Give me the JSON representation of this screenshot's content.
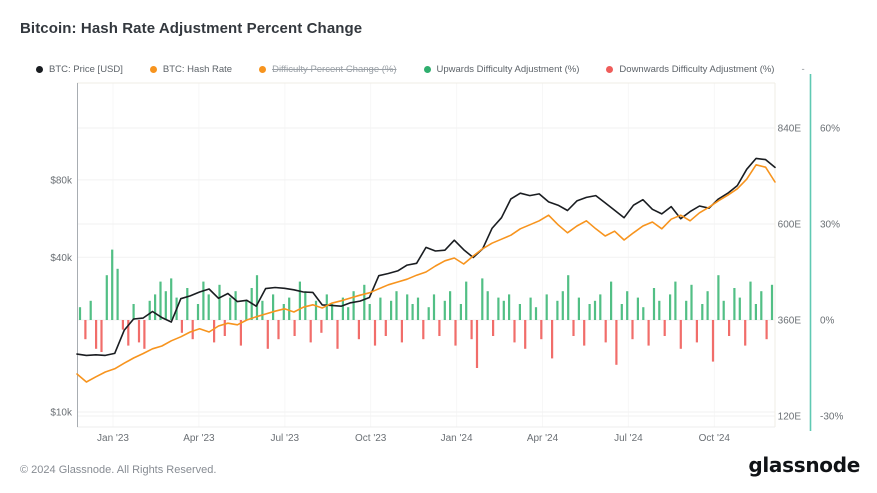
{
  "title": "Bitcoin: Hash Rate Adjustment Percent Change",
  "legend": [
    {
      "label": "BTC: Price [USD]",
      "color": "#1a1d21",
      "disabled": false
    },
    {
      "label": "BTC: Hash Rate",
      "color": "#f7941e",
      "disabled": false
    },
    {
      "label": "Difficulty Percent Change (%)",
      "color": "#f7941e",
      "disabled": true
    },
    {
      "label": "Upwards Difficulty Adjustment (%)",
      "color": "#2fae6e",
      "disabled": false
    },
    {
      "label": "Downwards Difficulty Adjustment (%)",
      "color": "#ef5d5a",
      "disabled": false
    },
    {
      "label": "-",
      "color": null,
      "disabled": false
    }
  ],
  "footer": {
    "copyright": "© 2024 Glassnode. All Rights Reserved.",
    "brand": "glassnode"
  },
  "colors": {
    "price_line": "#1a1d21",
    "hash_line": "#f7941e",
    "up_bar": "#3fb878",
    "down_bar": "#ef5d5a",
    "right_axis_line": "#5fc9b3",
    "grid": "#f2f2f2",
    "axis_text": "#6b7075",
    "left_axis_line": "#a8adb2",
    "frame": "#efece4"
  },
  "chart_data": {
    "type": "line+bar",
    "title": "Bitcoin: Hash Rate Adjustment Percent Change",
    "x_range_note": "Dec 2022 - Dec 2024",
    "x_ticks": [
      "Jan '23",
      "Apr '23",
      "Jul '23",
      "Oct '23",
      "Jan '24",
      "Apr '24",
      "Jul '24",
      "Oct '24"
    ],
    "axes": {
      "price": {
        "side": "left",
        "scale": "log",
        "unit": "$k",
        "ticks": [
          {
            "label": "$80k",
            "v": 80
          },
          {
            "label": "$40k",
            "v": 40
          },
          {
            "label": "$10k",
            "v": 10
          }
        ]
      },
      "hash": {
        "side": "right-inner",
        "scale": "linear",
        "unit": "EH/s",
        "ticks": [
          {
            "label": "840E",
            "v": 840
          },
          {
            "label": "600E",
            "v": 600
          },
          {
            "label": "360E",
            "v": 360
          },
          {
            "label": "120E",
            "v": 120
          }
        ]
      },
      "pct": {
        "side": "right-outer",
        "scale": "linear",
        "unit": "%",
        "ticks": [
          {
            "label": "60%",
            "v": 60
          },
          {
            "label": "30%",
            "v": 30
          },
          {
            "label": "0%",
            "v": 0
          },
          {
            "label": "-30%",
            "v": -30
          }
        ]
      }
    },
    "series": [
      {
        "name": "BTC: Price [USD]",
        "type": "line",
        "axis": "price",
        "color": "#1a1d21",
        "values": [
          16.8,
          16.6,
          16.7,
          16.6,
          16.9,
          20.8,
          23.0,
          23.2,
          24.6,
          23.3,
          22.4,
          27.6,
          28.3,
          29.3,
          30.1,
          27.7,
          28.9,
          26.9,
          27.2,
          25.8,
          30.2,
          30.5,
          30.3,
          29.9,
          29.3,
          29.2,
          26.1,
          26.0,
          25.8,
          26.6,
          27.0,
          27.9,
          33.9,
          34.6,
          35.4,
          37.3,
          37.9,
          43.7,
          42.3,
          42.6,
          46.6,
          42.8,
          39.9,
          43.1,
          51.8,
          57.0,
          67.5,
          71.0,
          69.5,
          70.6,
          65.7,
          63.8,
          60.8,
          66.3,
          68.4,
          69.5,
          65.1,
          61.0,
          57.0,
          63.8,
          67.0,
          61.5,
          59.0,
          63.0,
          56.5,
          60.2,
          63.3,
          62.1,
          67.4,
          71.0,
          76.0,
          88.0,
          97.0,
          96.0,
          89.5
        ]
      },
      {
        "name": "BTC: Hash Rate",
        "type": "line",
        "axis": "hash",
        "color": "#f7941e",
        "values": [
          225,
          205,
          218,
          230,
          238,
          252,
          265,
          276,
          288,
          295,
          308,
          318,
          330,
          338,
          330,
          345,
          352,
          348,
          360,
          368,
          375,
          382,
          388,
          380,
          392,
          398,
          390,
          402,
          408,
          415,
          422,
          428,
          438,
          448,
          455,
          462,
          472,
          480,
          495,
          508,
          515,
          500,
          520,
          538,
          552,
          562,
          572,
          588,
          598,
          608,
          622,
          598,
          578,
          595,
          608,
          588,
          570,
          582,
          560,
          578,
          595,
          605,
          588,
          612,
          622,
          608,
          628,
          642,
          658,
          672,
          688,
          712,
          748,
          742,
          705
        ]
      },
      {
        "name": "Difficulty Adjustment (%)",
        "type": "bar",
        "axis": "pct",
        "up_name": "Upwards Difficulty Adjustment (%)",
        "up_color": "#3fb878",
        "down_name": "Downwards Difficulty Adjustment (%)",
        "down_color": "#ef5d5a",
        "values": [
          4,
          -6,
          6,
          -9,
          -10,
          14,
          22,
          16,
          -3,
          -8,
          5,
          -7,
          -9,
          6,
          8,
          12,
          9,
          13,
          7,
          -4,
          10,
          -6,
          5,
          12,
          8,
          -7,
          11,
          -5,
          7,
          9,
          -8,
          6,
          10,
          14,
          6,
          -9,
          8,
          -6,
          5,
          7,
          -5,
          12,
          9,
          -7,
          6,
          -4,
          8,
          5,
          -9,
          7,
          4,
          9,
          -6,
          11,
          5,
          -8,
          7,
          -5,
          6,
          9,
          -7,
          8,
          5,
          7,
          -6,
          4,
          8,
          -5,
          6,
          9,
          -8,
          5,
          12,
          -6,
          -15,
          13,
          9,
          -5,
          7,
          6,
          8,
          -7,
          5,
          -9,
          7,
          4,
          -6,
          8,
          -12,
          6,
          9,
          14,
          -5,
          7,
          -8,
          5,
          6,
          8,
          -7,
          12,
          -14,
          5,
          9,
          -6,
          7,
          4,
          -8,
          10,
          6,
          -5,
          8,
          12,
          -9,
          6,
          11,
          -7,
          5,
          9,
          -13,
          14,
          6,
          -5,
          10,
          7,
          -8,
          12,
          5,
          9,
          -6,
          11
        ]
      }
    ]
  }
}
